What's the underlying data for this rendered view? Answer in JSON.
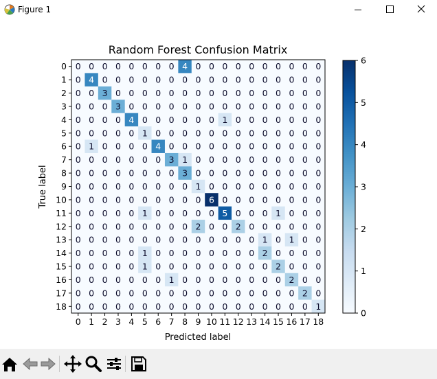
{
  "window": {
    "title": "Figure 1",
    "icon": "matplotlib-icon"
  },
  "window_controls": [
    {
      "name": "minimize-icon"
    },
    {
      "name": "maximize-icon"
    },
    {
      "name": "close-icon"
    }
  ],
  "toolbar": {
    "buttons": [
      {
        "icon": "home-icon",
        "enabled": true
      },
      {
        "icon": "back-arrow-icon",
        "enabled": false
      },
      {
        "icon": "forward-arrow-icon",
        "enabled": false
      },
      {
        "icon": "pan-icon",
        "enabled": true
      },
      {
        "icon": "zoom-icon",
        "enabled": true
      },
      {
        "icon": "configure-subplots-icon",
        "enabled": true
      },
      {
        "icon": "save-icon",
        "enabled": true
      }
    ]
  },
  "chart_data": {
    "type": "heatmap",
    "title": "Random Forest Confusion Matrix",
    "xlabel": "Predicted label",
    "ylabel": "True label",
    "x_ticks": [
      "0",
      "1",
      "2",
      "3",
      "4",
      "5",
      "6",
      "7",
      "8",
      "9",
      "10",
      "11",
      "12",
      "13",
      "14",
      "15",
      "16",
      "17",
      "18"
    ],
    "y_ticks": [
      "0",
      "1",
      "2",
      "3",
      "4",
      "5",
      "6",
      "7",
      "8",
      "9",
      "10",
      "11",
      "12",
      "13",
      "14",
      "15",
      "16",
      "17",
      "18"
    ],
    "colormap": "Blues",
    "colorbar": {
      "min": 0,
      "max": 6,
      "ticks": [
        "0",
        "1",
        "2",
        "3",
        "4",
        "5",
        "6"
      ]
    },
    "matrix": [
      [
        0,
        0,
        0,
        0,
        0,
        0,
        0,
        0,
        4,
        0,
        0,
        0,
        0,
        0,
        0,
        0,
        0,
        0,
        0
      ],
      [
        0,
        4,
        0,
        0,
        0,
        0,
        0,
        0,
        0,
        0,
        0,
        0,
        0,
        0,
        0,
        0,
        0,
        0,
        0
      ],
      [
        0,
        0,
        3,
        0,
        0,
        0,
        0,
        0,
        0,
        0,
        0,
        0,
        0,
        0,
        0,
        0,
        0,
        0,
        0
      ],
      [
        0,
        0,
        0,
        3,
        0,
        0,
        0,
        0,
        0,
        0,
        0,
        0,
        0,
        0,
        0,
        0,
        0,
        0,
        0
      ],
      [
        0,
        0,
        0,
        0,
        4,
        0,
        0,
        0,
        0,
        0,
        0,
        1,
        0,
        0,
        0,
        0,
        0,
        0,
        0
      ],
      [
        0,
        0,
        0,
        0,
        0,
        1,
        0,
        0,
        0,
        0,
        0,
        0,
        0,
        0,
        0,
        0,
        0,
        0,
        0
      ],
      [
        0,
        1,
        0,
        0,
        0,
        0,
        4,
        0,
        0,
        0,
        0,
        0,
        0,
        0,
        0,
        0,
        0,
        0,
        0
      ],
      [
        0,
        0,
        0,
        0,
        0,
        0,
        0,
        3,
        1,
        0,
        0,
        0,
        0,
        0,
        0,
        0,
        0,
        0,
        0
      ],
      [
        0,
        0,
        0,
        0,
        0,
        0,
        0,
        0,
        3,
        0,
        0,
        0,
        0,
        0,
        0,
        0,
        0,
        0,
        0
      ],
      [
        0,
        0,
        0,
        0,
        0,
        0,
        0,
        0,
        0,
        1,
        0,
        0,
        0,
        0,
        0,
        0,
        0,
        0,
        0
      ],
      [
        0,
        0,
        0,
        0,
        0,
        0,
        0,
        0,
        0,
        0,
        6,
        0,
        0,
        0,
        0,
        0,
        0,
        0,
        0
      ],
      [
        0,
        0,
        0,
        0,
        0,
        1,
        0,
        0,
        0,
        0,
        0,
        5,
        0,
        0,
        0,
        1,
        0,
        0,
        0
      ],
      [
        0,
        0,
        0,
        0,
        0,
        0,
        0,
        0,
        0,
        2,
        0,
        0,
        2,
        0,
        0,
        0,
        0,
        0,
        0
      ],
      [
        0,
        0,
        0,
        0,
        0,
        0,
        0,
        0,
        0,
        0,
        0,
        0,
        0,
        0,
        1,
        0,
        1,
        0,
        0
      ],
      [
        0,
        0,
        0,
        0,
        0,
        1,
        0,
        0,
        0,
        0,
        0,
        0,
        0,
        0,
        2,
        0,
        0,
        0,
        0
      ],
      [
        0,
        0,
        0,
        0,
        0,
        1,
        0,
        0,
        0,
        0,
        0,
        0,
        0,
        0,
        0,
        2,
        0,
        0,
        0
      ],
      [
        0,
        0,
        0,
        0,
        0,
        0,
        0,
        1,
        0,
        0,
        0,
        0,
        0,
        0,
        0,
        0,
        2,
        0,
        0
      ],
      [
        0,
        0,
        0,
        0,
        0,
        0,
        0,
        0,
        0,
        0,
        0,
        0,
        0,
        0,
        0,
        0,
        0,
        2,
        0
      ],
      [
        0,
        0,
        0,
        0,
        0,
        0,
        0,
        0,
        0,
        0,
        0,
        0,
        0,
        0,
        0,
        0,
        0,
        0,
        1
      ]
    ]
  }
}
